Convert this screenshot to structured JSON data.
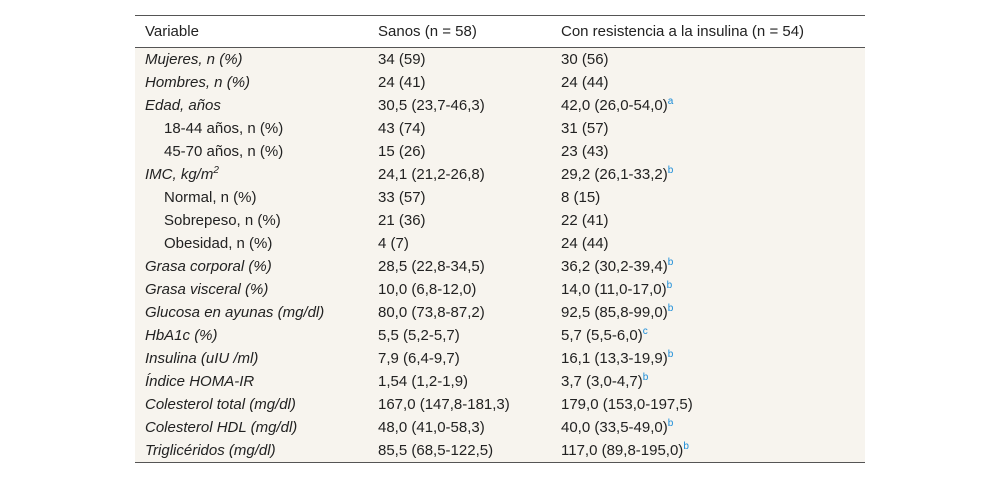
{
  "table": {
    "header": [
      "Variable",
      "Sanos (n = 58)",
      "Con resistencia a la insulina (n = 54)"
    ],
    "rows": [
      {
        "variable": "Mujeres, n (%)",
        "sanos": "34 (59)",
        "resistencia": "30 (56)"
      },
      {
        "variable": "Hombres, n (%)",
        "sanos": "24 (41)",
        "resistencia": "24 (44)"
      },
      {
        "variable": "Edad, años",
        "sanos": "30,5 (23,7-46,3)",
        "resistencia": "42,0 (26,0-54,0)",
        "nota": "a"
      },
      {
        "variable": "18-44 años, n (%)",
        "sanos": "43 (74)",
        "resistencia": "31 (57)"
      },
      {
        "variable": "45-70 años, n (%)",
        "sanos": "15 (26)",
        "resistencia": "23 (43)"
      },
      {
        "variable": "IMC, kg/m",
        "variable_sup": "2",
        "sanos": "24,1 (21,2-26,8)",
        "resistencia": "29,2 (26,1-33,2)",
        "nota": "b"
      },
      {
        "variable": "Normal, n (%)",
        "sanos": "33 (57)",
        "resistencia": "8 (15)"
      },
      {
        "variable": "Sobrepeso, n (%)",
        "sanos": "21 (36)",
        "resistencia": "22 (41)"
      },
      {
        "variable": "Obesidad, n (%)",
        "sanos": "4 (7)",
        "resistencia": "24 (44)"
      },
      {
        "variable": "Grasa corporal (%)",
        "sanos": "28,5 (22,8-34,5)",
        "resistencia": "36,2 (30,2-39,4)",
        "nota": "b"
      },
      {
        "variable": "Grasa visceral (%)",
        "sanos": "10,0 (6,8-12,0)",
        "resistencia": "14,0 (11,0-17,0)",
        "nota": "b"
      },
      {
        "variable": "Glucosa en ayunas (mg/dl)",
        "sanos": "80,0 (73,8-87,2)",
        "resistencia": "92,5 (85,8-99,0)",
        "nota": "b"
      },
      {
        "variable": "HbA1c (%)",
        "sanos": "5,5 (5,2-5,7)",
        "resistencia": "5,7 (5,5-6,0)",
        "nota": "c"
      },
      {
        "variable": "Insulina (uIU /ml)",
        "sanos": "7,9 (6,4-9,7)",
        "resistencia": "16,1 (13,3-19,9)",
        "nota": "b"
      },
      {
        "variable": "Índice HOMA-IR",
        "sanos": "1,54 (1,2-1,9)",
        "resistencia": "3,7 (3,0-4,7)",
        "nota": "b"
      },
      {
        "variable": "Colesterol total (mg/dl)",
        "sanos": "167,0 (147,8-181,3)",
        "resistencia": "179,0 (153,0-197,5)"
      },
      {
        "variable": "Colesterol HDL (mg/dl)",
        "sanos": "48,0 (41,0-58,3)",
        "resistencia": "40,0 (33,5-49,0)",
        "nota": "b"
      },
      {
        "variable": "Triglicéridos (mg/dl)",
        "sanos": "85,5 (68,5-122,5)",
        "resistencia": "117,0 (89,8-195,0)",
        "nota": "b"
      }
    ]
  }
}
